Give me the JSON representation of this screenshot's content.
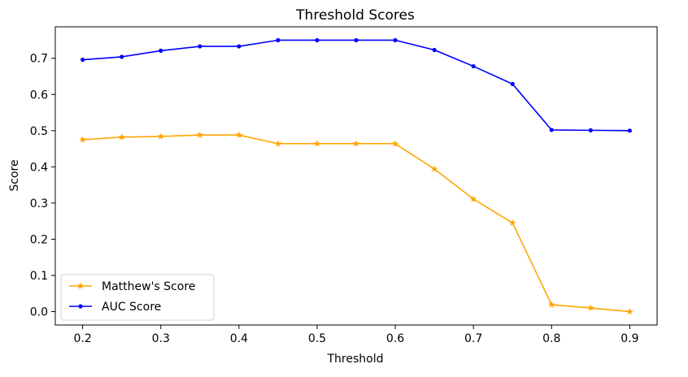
{
  "chart_data": {
    "type": "line",
    "title": "Threshold Scores",
    "xlabel": "Threshold",
    "ylabel": "Score",
    "x": [
      0.2,
      0.25,
      0.3,
      0.35,
      0.4,
      0.45,
      0.5,
      0.55,
      0.6,
      0.65,
      0.7,
      0.75,
      0.8,
      0.85,
      0.9
    ],
    "x_ticks": [
      "0.2",
      "0.3",
      "0.4",
      "0.5",
      "0.6",
      "0.7",
      "0.8",
      "0.9"
    ],
    "y_ticks": [
      "0.0",
      "0.1",
      "0.2",
      "0.3",
      "0.4",
      "0.5",
      "0.6",
      "0.7"
    ],
    "xlim": [
      0.165,
      0.935
    ],
    "ylim": [
      -0.037,
      0.787
    ],
    "grid": false,
    "legend_position": "lower-left",
    "series": [
      {
        "name": "Matthew's Score",
        "color": "#ffa500",
        "marker": "star",
        "values": [
          0.475,
          0.482,
          0.484,
          0.488,
          0.488,
          0.464,
          0.464,
          0.464,
          0.464,
          0.394,
          0.311,
          0.245,
          0.019,
          0.01,
          0.0
        ]
      },
      {
        "name": "AUC Score",
        "color": "#0000ff",
        "marker": "dot",
        "values": [
          0.696,
          0.704,
          0.721,
          0.733,
          0.733,
          0.75,
          0.75,
          0.75,
          0.75,
          0.723,
          0.678,
          0.629,
          0.502,
          0.501,
          0.5
        ]
      }
    ]
  }
}
